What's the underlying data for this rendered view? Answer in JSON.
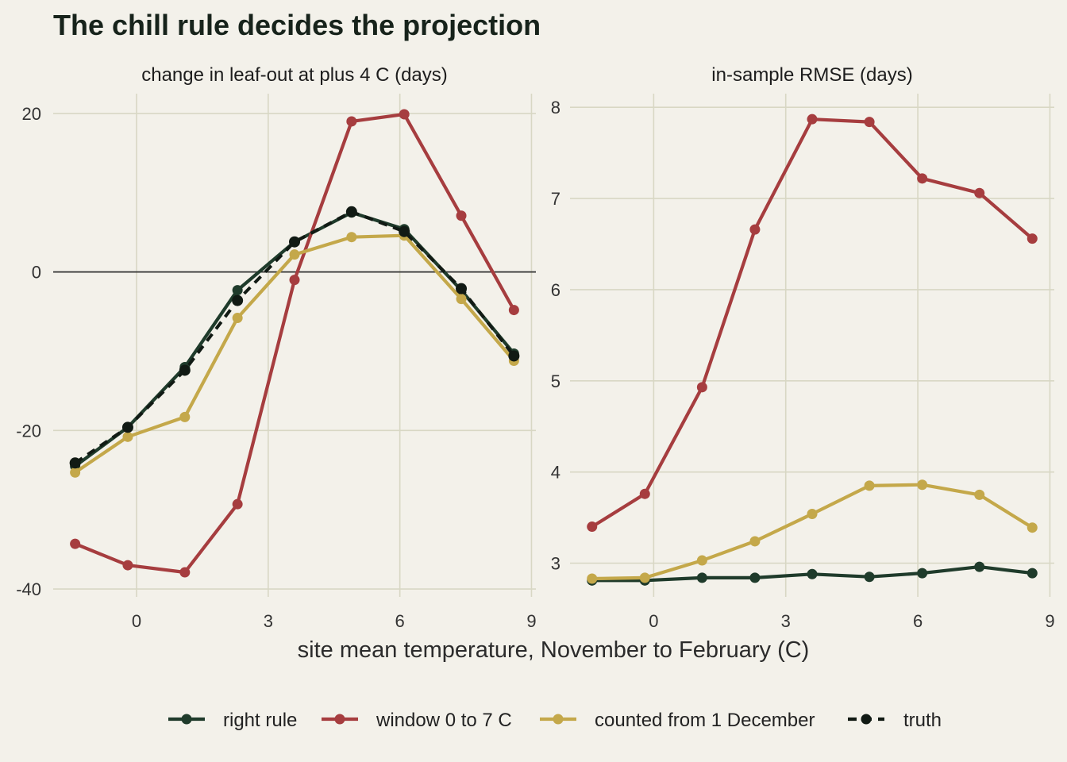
{
  "chart": {
    "title": "The chill rule decides the projection",
    "xlabel": "site mean temperature, November to February (C)"
  },
  "legend": [
    {
      "key": "right",
      "label": "right rule"
    },
    {
      "key": "window",
      "label": "window 0 to 7 C"
    },
    {
      "key": "december",
      "label": "counted from 1 December"
    },
    {
      "key": "truth",
      "label": "truth"
    }
  ],
  "colors": {
    "right": "#1f3b2b",
    "window": "#a63d3f",
    "december": "#c4a84a",
    "truth": "#111a14",
    "background": "#f3f1ea",
    "grid": "#d8d7c4",
    "zero_line": "#333333"
  },
  "chart_data": [
    {
      "type": "line",
      "panel_title": "change in leaf-out at plus 4 C (days)",
      "x": [
        -1.4,
        -0.2,
        1.1,
        2.3,
        3.6,
        4.9,
        6.1,
        7.4,
        8.6
      ],
      "xlim": [
        -1.9,
        9.1
      ],
      "ylim": [
        -41,
        22.5
      ],
      "xticks": [
        0,
        3,
        6,
        9
      ],
      "xtick_labels": [
        "0",
        "3",
        "6",
        "9"
      ],
      "yticks": [
        -40,
        -20,
        0,
        20
      ],
      "ytick_labels": [
        "-40",
        "-20",
        "0",
        "20"
      ],
      "zero_line": true,
      "series": [
        {
          "name": "right rule",
          "key": "right",
          "values": [
            -24.5,
            -19.6,
            -12.0,
            -2.3,
            3.8,
            7.5,
            5.4,
            -2.3,
            -10.3
          ]
        },
        {
          "name": "window 0 to 7 C",
          "key": "window",
          "values": [
            -34.3,
            -37.0,
            -37.9,
            -29.3,
            -1.0,
            19.0,
            19.9,
            7.1,
            -4.8
          ]
        },
        {
          "name": "counted from 1 December",
          "key": "december",
          "values": [
            -25.3,
            -20.8,
            -18.3,
            -5.8,
            2.2,
            4.4,
            4.6,
            -3.4,
            -11.2
          ]
        },
        {
          "name": "truth",
          "key": "truth",
          "values": [
            -24.1,
            -19.6,
            -12.4,
            -3.6,
            3.8,
            7.6,
            5.1,
            -2.1,
            -10.6
          ]
        }
      ]
    },
    {
      "type": "line",
      "panel_title": "in-sample RMSE (days)",
      "x": [
        -1.4,
        -0.2,
        1.1,
        2.3,
        3.6,
        4.9,
        6.1,
        7.4,
        8.6
      ],
      "xlim": [
        -1.9,
        9.1
      ],
      "ylim": [
        2.63,
        8.15
      ],
      "xticks": [
        0,
        3,
        6,
        9
      ],
      "xtick_labels": [
        "0",
        "3",
        "6",
        "9"
      ],
      "yticks": [
        3,
        4,
        5,
        6,
        7,
        8
      ],
      "ytick_labels": [
        "3",
        "4",
        "5",
        "6",
        "7",
        "8"
      ],
      "zero_line": false,
      "series": [
        {
          "name": "right rule",
          "key": "right",
          "values": [
            2.81,
            2.81,
            2.84,
            2.84,
            2.88,
            2.85,
            2.89,
            2.96,
            2.89
          ]
        },
        {
          "name": "window 0 to 7 C",
          "key": "window",
          "values": [
            3.4,
            3.76,
            4.93,
            6.66,
            7.87,
            7.84,
            7.22,
            7.06,
            6.56
          ]
        },
        {
          "name": "counted from 1 December",
          "key": "december",
          "values": [
            2.83,
            2.84,
            3.03,
            3.24,
            3.54,
            3.85,
            3.86,
            3.75,
            3.39
          ]
        }
      ]
    }
  ]
}
